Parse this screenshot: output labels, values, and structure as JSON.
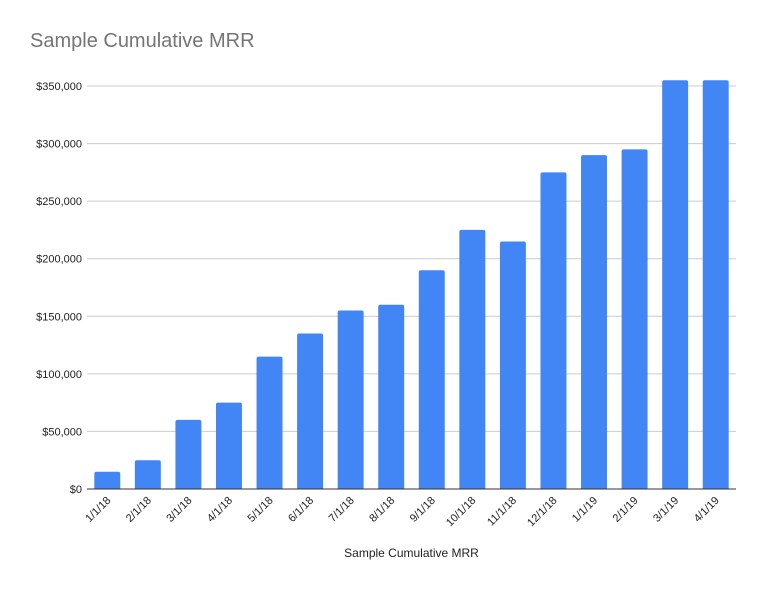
{
  "chart_data": {
    "type": "bar",
    "title": "Sample Cumulative MRR",
    "xlabel": "Sample Cumulative MRR",
    "ylabel": "",
    "categories": [
      "1/1/18",
      "2/1/18",
      "3/1/18",
      "4/1/18",
      "5/1/18",
      "6/1/18",
      "7/1/18",
      "8/1/18",
      "9/1/18",
      "10/1/18",
      "11/1/18",
      "12/1/18",
      "1/1/19",
      "2/1/19",
      "3/1/19",
      "4/1/19"
    ],
    "values": [
      15000,
      25000,
      60000,
      75000,
      115000,
      135000,
      155000,
      160000,
      190000,
      225000,
      215000,
      275000,
      290000,
      295000,
      355000,
      355000
    ],
    "ylim": [
      0,
      350000
    ],
    "yticks": [
      0,
      50000,
      100000,
      150000,
      200000,
      250000,
      300000,
      350000
    ],
    "ytick_labels": [
      "$0",
      "$50,000",
      "$100,000",
      "$150,000",
      "$200,000",
      "$250,000",
      "$300,000",
      "$350,000"
    ],
    "grid": true,
    "legend": "none",
    "bar_color": "#4285f4",
    "grid_color": "#cccccc",
    "axis_color": "#333333"
  }
}
